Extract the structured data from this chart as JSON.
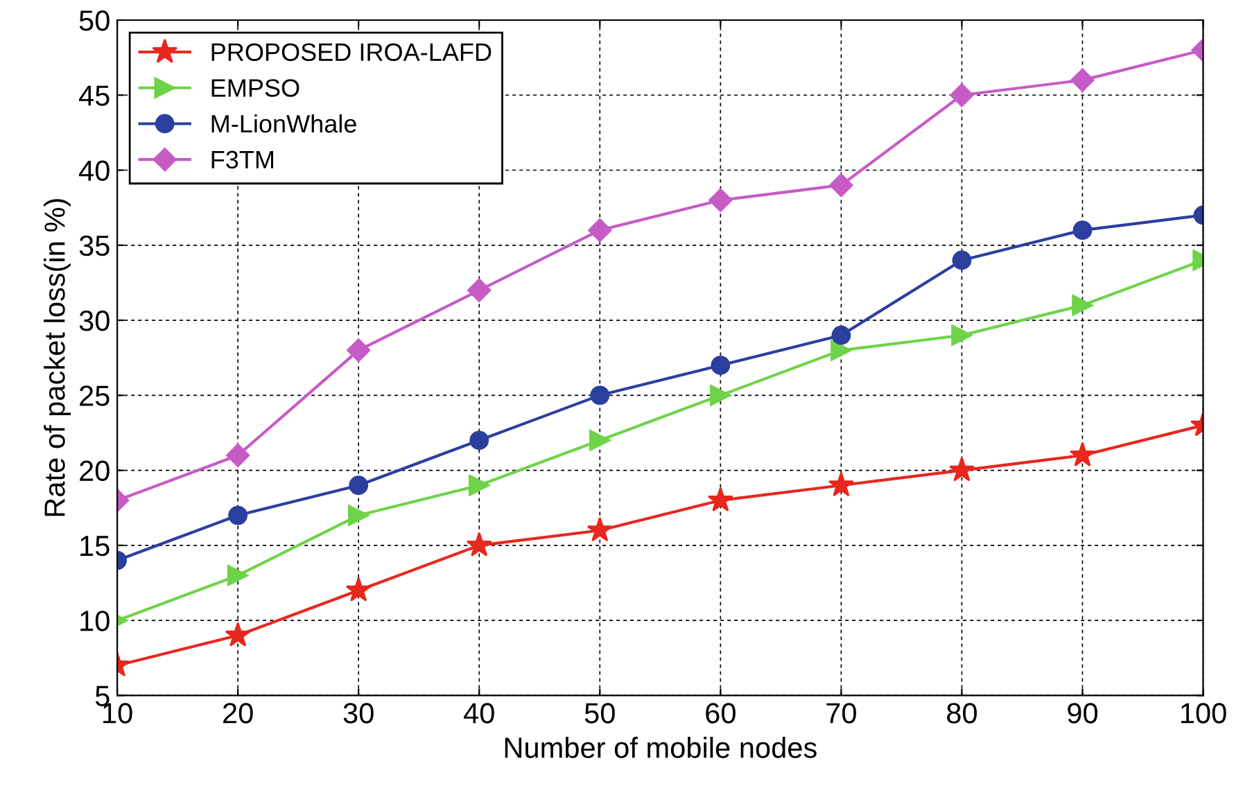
{
  "chart_data": {
    "type": "line",
    "xlabel": "Number of mobile nodes",
    "ylabel": "Rate of packet loss(in %)",
    "x": [
      10,
      20,
      30,
      40,
      50,
      60,
      70,
      80,
      90,
      100
    ],
    "series": [
      {
        "name": "PROPOSED IROA-LAFD",
        "color": "#e8271f",
        "marker": "star",
        "values": [
          7,
          9,
          12,
          15,
          16,
          18,
          19,
          20,
          21,
          23
        ]
      },
      {
        "name": "EMPSO",
        "color": "#6fd34a",
        "marker": "triangle",
        "values": [
          10,
          13,
          17,
          19,
          22,
          25,
          28,
          29,
          31,
          34
        ]
      },
      {
        "name": "M-LionWhale",
        "color": "#2b3f9e",
        "marker": "circle",
        "values": [
          14,
          17,
          19,
          22,
          25,
          27,
          29,
          34,
          36,
          37
        ]
      },
      {
        "name": "F3TM",
        "color": "#c65bc6",
        "marker": "diamond",
        "values": [
          18,
          21,
          28,
          32,
          36,
          38,
          39,
          45,
          46,
          48
        ]
      }
    ],
    "xlim": [
      10,
      100
    ],
    "xticks": [
      10,
      20,
      30,
      40,
      50,
      60,
      70,
      80,
      90,
      100
    ],
    "ylim": [
      5,
      50
    ],
    "yticks": [
      5,
      10,
      15,
      20,
      25,
      30,
      35,
      40,
      45,
      50
    ],
    "grid": true,
    "legend": "top left",
    "line_style": "solid"
  }
}
